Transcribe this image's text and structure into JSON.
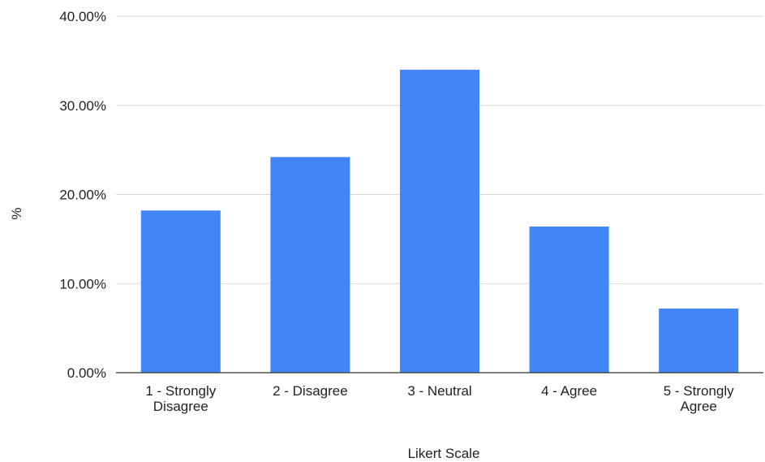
{
  "chart_data": {
    "type": "bar",
    "categories": [
      [
        "1 - Strongly",
        "Disagree"
      ],
      [
        "2 - Disagree"
      ],
      [
        "3 - Neutral"
      ],
      [
        "4 - Agree"
      ],
      [
        "5 - Strongly",
        "Agree"
      ]
    ],
    "values": [
      18.2,
      24.2,
      34.0,
      16.4,
      7.2
    ],
    "xlabel": "Likert Scale",
    "ylabel": "%",
    "ylim": [
      0,
      40
    ],
    "yticks": [
      "0.00%",
      "10.00%",
      "20.00%",
      "30.00%",
      "40.00%"
    ],
    "ytick_values": [
      0,
      10,
      20,
      30,
      40
    ],
    "grid": true,
    "bar_color": "#4285f4"
  }
}
